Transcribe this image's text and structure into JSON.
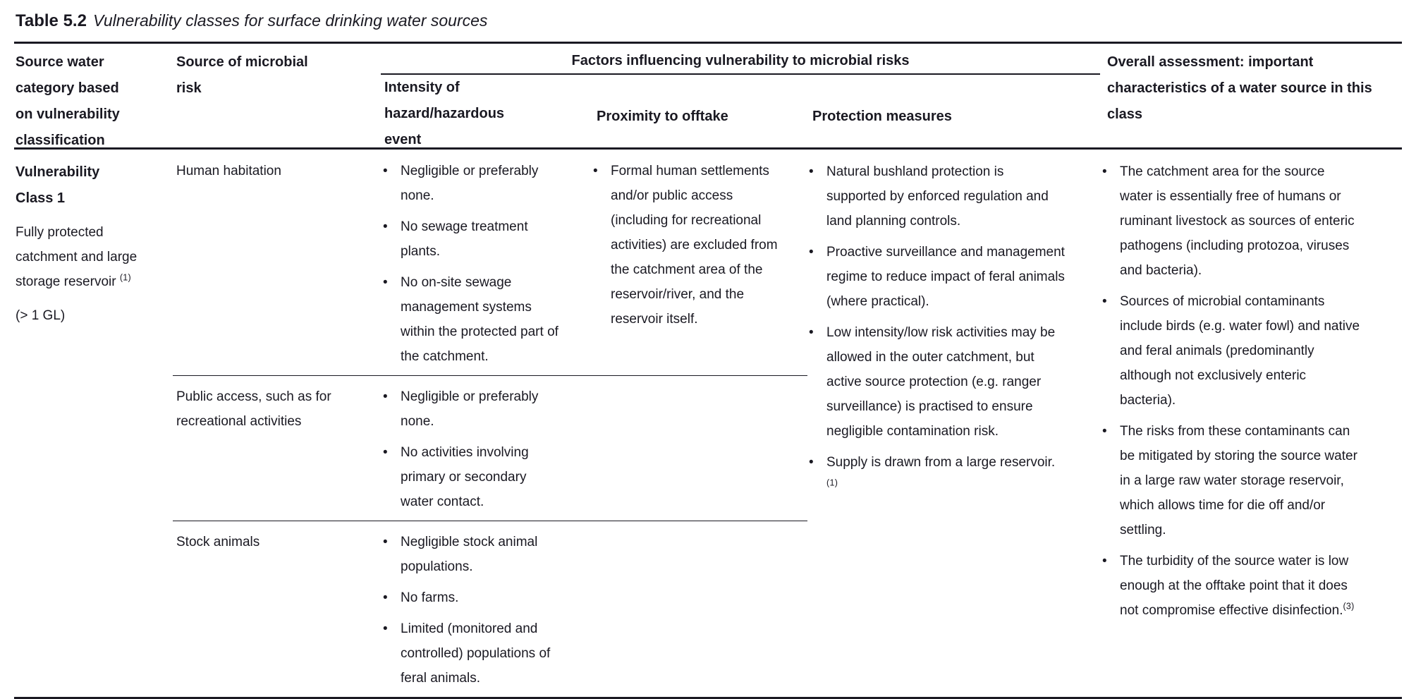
{
  "title": {
    "label": "Table 5.2",
    "caption": "Vulnerability classes for surface drinking water sources"
  },
  "headers": {
    "source_water": "Source water category based on vulnerability classification",
    "microbial_risk": "Source of microbial risk",
    "factors_group": "Factors influencing vulnerability to microbial risks",
    "intensity": "Intensity of hazard/hazardous event",
    "proximity": "Proximity to offtake",
    "protection": "Protection measures",
    "overall": "Overall assessment: important characteristics of a water source in this class"
  },
  "row": {
    "class_name": "Vulnerability Class 1",
    "class_description": "Fully protected catchment and large storage reservoir",
    "class_description_footnote": "(1)",
    "class_capacity": "(> 1 GL)",
    "subrows": [
      {
        "microbial_risk": "Human habitation",
        "intensity": [
          "Negligible or preferably none.",
          "No sewage treatment plants.",
          "No on-site sewage management systems within the protected part of the catchment."
        ],
        "proximity": [
          "Formal human settlements and/or public access (including for recreational activities) are excluded from the catchment area of the reservoir/river, and the reservoir itself."
        ]
      },
      {
        "microbial_risk": "Public access, such as for recreational activities",
        "intensity": [
          "Negligible or preferably none.",
          "No activities involving primary or secondary water contact."
        ],
        "proximity": []
      },
      {
        "microbial_risk": "Stock animals",
        "intensity": [
          "Negligible stock animal populations.",
          "No farms.",
          "Limited (monitored and controlled) populations of feral animals."
        ],
        "proximity": []
      }
    ],
    "protection": [
      {
        "text": "Natural bushland protection is supported by enforced regulation and land planning controls.",
        "footnote": ""
      },
      {
        "text": "Proactive surveillance and management regime to reduce impact of feral animals (where practical).",
        "footnote": ""
      },
      {
        "text": "Low intensity/low risk activities may be allowed in the outer catchment, but active source protection (e.g. ranger surveillance) is practised to ensure negligible contamination risk.",
        "footnote": ""
      },
      {
        "text": "Supply is drawn from a large reservoir.",
        "footnote": "(1)"
      }
    ],
    "overall": [
      {
        "text": "The catchment area for the source water is essentially free of humans or ruminant livestock as sources of enteric pathogens (including protozoa, viruses and bacteria).",
        "footnote": ""
      },
      {
        "text": "Sources of microbial contaminants include birds (e.g. water fowl) and native and feral animals (predominantly although not exclusively enteric bacteria).",
        "footnote": ""
      },
      {
        "text": "The risks from these contaminants can be mitigated by storing the source water in a large raw water storage reservoir, which allows time for die off and/or settling.",
        "footnote": ""
      },
      {
        "text": "The turbidity of the source water is low enough at the offtake point that it does not compromise effective disinfection.",
        "footnote": "(3)"
      }
    ]
  }
}
